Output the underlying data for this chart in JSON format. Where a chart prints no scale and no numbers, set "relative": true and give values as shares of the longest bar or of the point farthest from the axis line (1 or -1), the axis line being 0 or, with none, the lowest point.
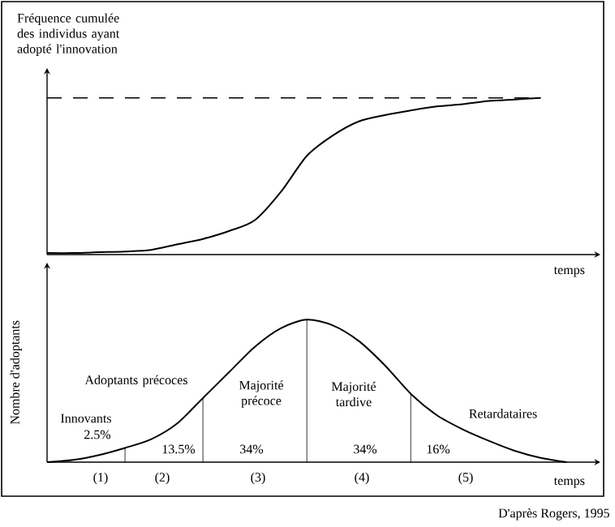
{
  "chart_data": [
    {
      "type": "line",
      "relative": true,
      "ylabel": "Fréquence cumulée des individus ayant adopté l'innovation",
      "xlabel": "temps",
      "color": "#000000",
      "categories": [
        null,
        null,
        null,
        null,
        null,
        null,
        null,
        null,
        null,
        null,
        null,
        null,
        null,
        null,
        null,
        null,
        null,
        null,
        null,
        null
      ],
      "values": [
        0.01,
        0.01,
        0.015,
        0.02,
        0.03,
        0.065,
        0.1,
        0.15,
        0.22,
        0.4,
        0.63,
        0.76,
        0.85,
        0.89,
        0.92,
        0.945,
        0.96,
        0.98,
        0.99,
        1
      ],
      "ref_lines": [
        {
          "axis": "y",
          "value": 1,
          "line_style": "dashed"
        }
      ]
    },
    {
      "type": "line",
      "relative": true,
      "ylabel": "Nombre d'adoptants",
      "xlabel": "temps",
      "color": "#000000",
      "categories": [
        null,
        null,
        null,
        null,
        null,
        null,
        null,
        null,
        null,
        null,
        null,
        null,
        null,
        null,
        null,
        null,
        null,
        null,
        null,
        null,
        null
      ],
      "values": [
        0,
        0.015,
        0.05,
        0.1,
        0.16,
        0.27,
        0.45,
        0.63,
        0.81,
        0.94,
        1,
        0.96,
        0.85,
        0.68,
        0.48,
        0.33,
        0.23,
        0.15,
        0.08,
        0.03,
        0
      ],
      "annotations": [
        "Innovants",
        "2.5%",
        "Adoptants précoces",
        "13.5%",
        "Majorité précoce",
        "34%",
        "Majorité tardive",
        "34%",
        "16%",
        "Retardataires",
        "(1)",
        "(2)",
        "(3)",
        "(4)",
        "(5)",
        "D'après Rogers, 1995"
      ]
    }
  ]
}
